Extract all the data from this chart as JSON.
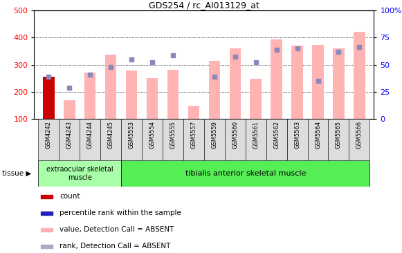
{
  "title": "GDS254 / rc_AI013129_at",
  "samples": [
    "GSM4242",
    "GSM4243",
    "GSM4244",
    "GSM4245",
    "GSM5553",
    "GSM5554",
    "GSM5555",
    "GSM5557",
    "GSM5559",
    "GSM5560",
    "GSM5561",
    "GSM5562",
    "GSM5563",
    "GSM5564",
    "GSM5565",
    "GSM5566"
  ],
  "bar_values": [
    255,
    170,
    270,
    338,
    278,
    250,
    280,
    148,
    315,
    360,
    248,
    393,
    370,
    373,
    360,
    420
  ],
  "bar_colors": [
    "#cc0000",
    "#ffb3b3",
    "#ffb3b3",
    "#ffb3b3",
    "#ffb3b3",
    "#ffb3b3",
    "#ffb3b3",
    "#ffb3b3",
    "#ffb3b3",
    "#ffb3b3",
    "#ffb3b3",
    "#ffb3b3",
    "#ffb3b3",
    "#ffb3b3",
    "#ffb3b3",
    "#ffb3b3"
  ],
  "rank_values": [
    255,
    215,
    263,
    292,
    320,
    310,
    335,
    null,
    255,
    330,
    308,
    355,
    360,
    240,
    348,
    365
  ],
  "ylim_left": [
    100,
    500
  ],
  "ylim_right": [
    0,
    100
  ],
  "left_yticks": [
    100,
    200,
    300,
    400,
    500
  ],
  "right_yticks": [
    0,
    25,
    50,
    75,
    100
  ],
  "right_yticklabels": [
    "0",
    "25",
    "50",
    "75",
    "100%"
  ],
  "grid_values": [
    200,
    300,
    400
  ],
  "tissue_groups": [
    {
      "label": "extraocular skeletal\nmuscle",
      "n_samples": 4,
      "color": "#aaffaa"
    },
    {
      "label": "tibialis anterior skeletal muscle",
      "n_samples": 12,
      "color": "#55ee55"
    }
  ],
  "legend_colors": [
    "#cc0000",
    "#2222bb",
    "#ffb3b3",
    "#aaaacc"
  ],
  "legend_labels": [
    "count",
    "percentile rank within the sample",
    "value, Detection Call = ABSENT",
    "rank, Detection Call = ABSENT"
  ],
  "rank_color": "#8888bb",
  "bar_color_absent": "#ffb3b3",
  "tissue_label": "tissue"
}
